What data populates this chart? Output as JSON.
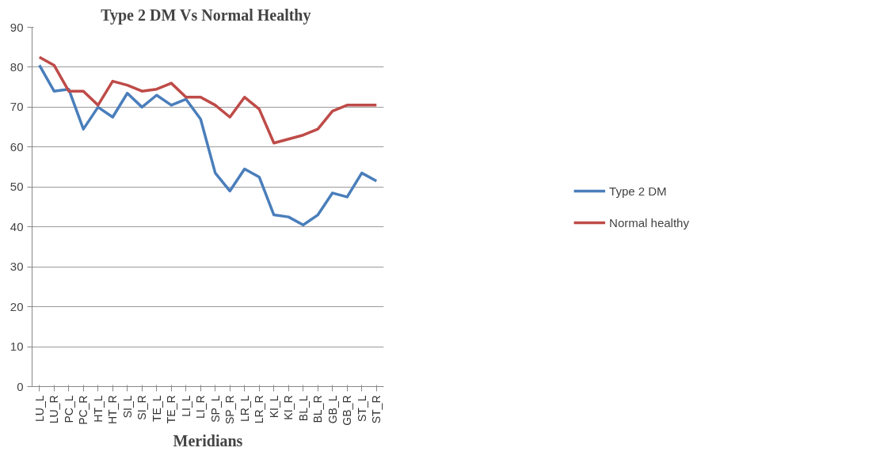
{
  "chart_data": {
    "type": "line",
    "title": "Type 2 DM Vs  Normal Healthy",
    "xlabel": "Meridians",
    "categories": [
      "LU_L",
      "LU_R",
      "PC_L",
      "PC_R",
      "HT_L",
      "HT_R",
      "SI_L",
      "SI_R",
      "TE_L",
      "TE_R",
      "LI_L",
      "LI_R",
      "SP_L",
      "SP_R",
      "LR_L",
      "LR_R",
      "KI_L",
      "KI_R",
      "BL_L",
      "BL_R",
      "GB_L",
      "GB_R",
      "ST_L",
      "ST_R"
    ],
    "series": [
      {
        "name": "Type 2 DM",
        "color": "#4a7ebb",
        "values": [
          80.5,
          74,
          74.5,
          64.5,
          70,
          67.5,
          73.5,
          70,
          73,
          70.5,
          72,
          67,
          53.5,
          49,
          54.5,
          52.5,
          43,
          42.5,
          40.5,
          43,
          48.5,
          47.5,
          53.5,
          51.5
        ]
      },
      {
        "name": "Normal healthy",
        "color": "#be4b48",
        "values": [
          82.5,
          80.5,
          74,
          74,
          70.5,
          76.5,
          75.5,
          74,
          74.5,
          76,
          72.5,
          72.5,
          70.5,
          67.5,
          72.5,
          69.5,
          61,
          62,
          63,
          64.5,
          69,
          70.5,
          70.5,
          70.5
        ]
      }
    ],
    "ylim": [
      0,
      90
    ],
    "yticks": [
      0,
      10,
      20,
      30,
      40,
      50,
      60,
      70,
      80,
      90
    ],
    "grid": "y",
    "legend": "right",
    "marker": "none",
    "line_style": "solid"
  }
}
